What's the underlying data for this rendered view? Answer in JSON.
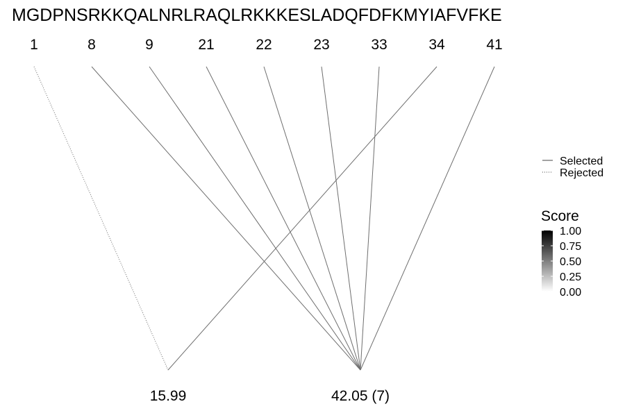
{
  "sequence": "MGDPNSRKKQALNRLRAQLRKKKESLADQFDFKMYIAFVFKE",
  "positions": [
    "1",
    "8",
    "9",
    "21",
    "22",
    "23",
    "33",
    "34",
    "41"
  ],
  "bottom_nodes": [
    "15.99",
    "42.05 (7)"
  ],
  "links": [
    {
      "from": "1",
      "to": "15.99",
      "status": "Rejected"
    },
    {
      "from": "8",
      "to": "42.05 (7)",
      "status": "Selected"
    },
    {
      "from": "9",
      "to": "42.05 (7)",
      "status": "Selected"
    },
    {
      "from": "21",
      "to": "42.05 (7)",
      "status": "Selected"
    },
    {
      "from": "22",
      "to": "42.05 (7)",
      "status": "Selected"
    },
    {
      "from": "23",
      "to": "42.05 (7)",
      "status": "Selected"
    },
    {
      "from": "33",
      "to": "42.05 (7)",
      "status": "Selected"
    },
    {
      "from": "34",
      "to": "15.99",
      "status": "Selected"
    },
    {
      "from": "41",
      "to": "42.05 (7)",
      "status": "Selected"
    }
  ],
  "legend": {
    "linetype": [
      {
        "label": "Selected",
        "style": "solid"
      },
      {
        "label": "Rejected",
        "style": "dotted"
      }
    ],
    "score": {
      "title": "Score",
      "ticks": [
        "1.00",
        "0.75",
        "0.50",
        "0.25",
        "0.00"
      ],
      "color_high": "#000000",
      "color_low": "#ffffff"
    }
  },
  "colors": {
    "line": "#6e6e6e",
    "text": "#000000"
  }
}
